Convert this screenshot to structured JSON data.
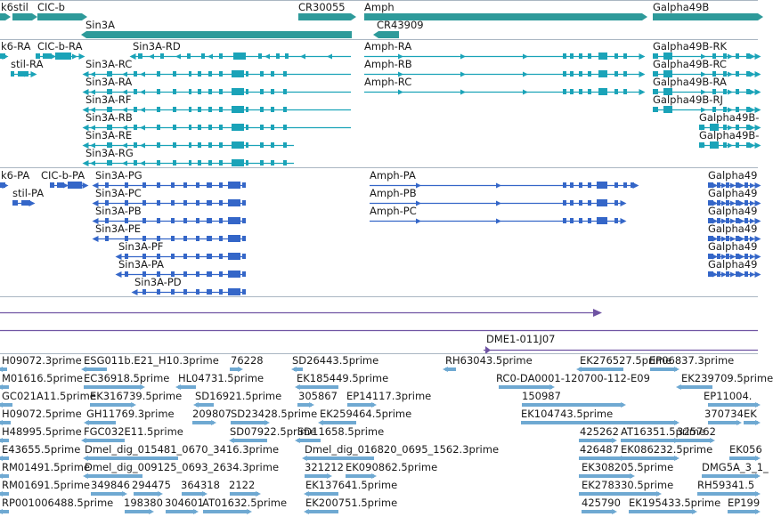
{
  "colors": {
    "gene": "#2e9a9a",
    "transcript_teal": "#1aa3b8",
    "transcript_blue": "#3466c8",
    "contig": "#6f53a3",
    "est": "#6fa9d2",
    "divider": "#aab6c2"
  },
  "genes": {
    "items": [
      {
        "label": "k6stil"
      },
      {
        "label": "CIC-b"
      },
      {
        "label": "Sin3A"
      },
      {
        "label": "CR30055"
      },
      {
        "label": "Amph"
      },
      {
        "label": "CR43909"
      },
      {
        "label": "Galpha49B"
      }
    ]
  },
  "transcripts_a": {
    "items": [
      {
        "label": "k6-RA"
      },
      {
        "label": "CIC-b-RA"
      },
      {
        "label": "Sin3A-RD"
      },
      {
        "label": "stil-RA"
      },
      {
        "label": "Sin3A-RC"
      },
      {
        "label": "Sin3A-RA"
      },
      {
        "label": "Sin3A-RF"
      },
      {
        "label": "Sin3A-RB"
      },
      {
        "label": "Sin3A-RE"
      },
      {
        "label": "Sin3A-RG"
      },
      {
        "label": "Amph-RA"
      },
      {
        "label": "Amph-RB"
      },
      {
        "label": "Amph-RC"
      },
      {
        "label": "Galpha49B-RK"
      },
      {
        "label": "Galpha49B-RC"
      },
      {
        "label": "Galpha49B-RA"
      },
      {
        "label": "Galpha49B-RJ"
      },
      {
        "label": "Galpha49B-"
      },
      {
        "label": "Galpha49B-"
      }
    ]
  },
  "transcripts_b": {
    "items": [
      {
        "label": "k6-PA"
      },
      {
        "label": "CIC-b-PA"
      },
      {
        "label": "stil-PA"
      },
      {
        "label": "Sin3A-PG"
      },
      {
        "label": "Sin3A-PC"
      },
      {
        "label": "Sin3A-PB"
      },
      {
        "label": "Sin3A-PE"
      },
      {
        "label": "Sin3A-PF"
      },
      {
        "label": "Sin3A-PA"
      },
      {
        "label": "Sin3A-PD"
      },
      {
        "label": "Amph-PA"
      },
      {
        "label": "Amph-PB"
      },
      {
        "label": "Amph-PC"
      },
      {
        "label": "Galpha49"
      },
      {
        "label": "Galpha49"
      },
      {
        "label": "Galpha49"
      },
      {
        "label": "Galpha49"
      },
      {
        "label": "Galpha49"
      },
      {
        "label": "Galpha49"
      }
    ]
  },
  "contig": {
    "label": "DME1-011J07"
  },
  "ests": {
    "items": [
      {
        "label": "H09072.3prime"
      },
      {
        "label": "ESG011b.E21_H10.3prime"
      },
      {
        "label": "76228"
      },
      {
        "label": "SD26443.5prime"
      },
      {
        "label": "RH63043.5prime"
      },
      {
        "label": "EK276527.5prime"
      },
      {
        "label": "EP06837.3prime"
      },
      {
        "label": "M01616.5prime"
      },
      {
        "label": "EC36918.5prime"
      },
      {
        "label": "HL04731.5prime"
      },
      {
        "label": "EK185449.5prime"
      },
      {
        "label": "RC0-DA0001-120700-112-E09"
      },
      {
        "label": "EK239709.5prime"
      },
      {
        "label": "GC021A11.5prime"
      },
      {
        "label": "EK316739.5prime"
      },
      {
        "label": "SD16921.5prime"
      },
      {
        "label": "305867"
      },
      {
        "label": "EP14117.3prime"
      },
      {
        "label": "150987"
      },
      {
        "label": "EP11004."
      },
      {
        "label": "H09072.5prime"
      },
      {
        "label": "GH11769.3prime"
      },
      {
        "label": "209807"
      },
      {
        "label": "SD23428.5prime"
      },
      {
        "label": "EK259464.5prime"
      },
      {
        "label": "EK104743.5prime"
      },
      {
        "label": "370734"
      },
      {
        "label": "EK"
      },
      {
        "label": "H48995.5prime"
      },
      {
        "label": "FGC032E11.5prime"
      },
      {
        "label": "SD07922.5prime"
      },
      {
        "label": "SD11658.5prime"
      },
      {
        "label": "425262"
      },
      {
        "label": "AT16351.5prime"
      },
      {
        "label": "325762"
      },
      {
        "label": "E43655.5prime"
      },
      {
        "label": "Dmel_dig_015481_0670_3416.3prime"
      },
      {
        "label": "Dmel_dig_016820_0695_1562.3prime"
      },
      {
        "label": "426487"
      },
      {
        "label": "EK086232.5prime"
      },
      {
        "label": "EK056"
      },
      {
        "label": "RM01491.5prime"
      },
      {
        "label": "Dmel_dig_009125_0693_2634.3prime"
      },
      {
        "label": "321212"
      },
      {
        "label": "EK090862.5prime"
      },
      {
        "label": "EK308205.5prime"
      },
      {
        "label": "DMG5A_3_1_"
      },
      {
        "label": "RM01691.5prime"
      },
      {
        "label": "349846"
      },
      {
        "label": "294475"
      },
      {
        "label": "364318"
      },
      {
        "label": "2122"
      },
      {
        "label": "EK137641.5prime"
      },
      {
        "label": "EK278330.5prime"
      },
      {
        "label": "RH59341.5"
      },
      {
        "label": "RP001006488.5prime"
      },
      {
        "label": "198380"
      },
      {
        "label": "304601"
      },
      {
        "label": "AT01632.5prime"
      },
      {
        "label": "EK200751.5prime"
      },
      {
        "label": "425790"
      },
      {
        "label": "EK195433.5prime"
      },
      {
        "label": "EP199"
      }
    ]
  }
}
